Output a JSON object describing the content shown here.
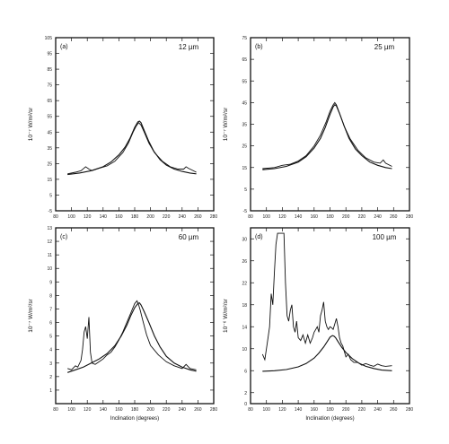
{
  "chart_data": [
    {
      "type": "line",
      "panel": "(a)",
      "wavelength": "12 µm",
      "ylabel": "10⁻⁷ W/m²/sr",
      "xlabel": "",
      "xlim": [
        80,
        280
      ],
      "ylim": [
        -5,
        105
      ],
      "xticks": [
        "80",
        "100",
        "120",
        "140",
        "160",
        "180",
        "200",
        "220",
        "240",
        "260",
        "280"
      ],
      "yticks": [
        "-5",
        "5",
        "15",
        "25",
        "35",
        "45",
        "55",
        "65",
        "75",
        "85",
        "95",
        "105"
      ],
      "series": [
        {
          "role": "observed",
          "x": [
            95,
            105,
            112,
            118,
            122,
            126,
            135,
            145,
            155,
            165,
            172,
            178,
            182,
            185,
            188,
            192,
            198,
            205,
            215,
            225,
            235,
            242,
            245,
            248,
            252,
            258
          ],
          "y": [
            18.5,
            19.5,
            20.5,
            23,
            21.5,
            20.5,
            22,
            23.5,
            26.5,
            32,
            38,
            45,
            49,
            51,
            49.5,
            45,
            38,
            32,
            26.5,
            23,
            21.5,
            21.5,
            23,
            22,
            21,
            19.5
          ]
        },
        {
          "role": "model",
          "x": [
            95,
            110,
            125,
            140,
            150,
            160,
            168,
            174,
            180,
            184,
            186,
            188,
            192,
            198,
            204,
            212,
            220,
            230,
            240,
            250,
            258
          ],
          "y": [
            18,
            19,
            20.5,
            23,
            26,
            30.5,
            35.5,
            41,
            48,
            51.5,
            52,
            51,
            46,
            39,
            33,
            27.5,
            24,
            21.5,
            20,
            19,
            18.5
          ]
        }
      ]
    },
    {
      "type": "line",
      "panel": "(b)",
      "wavelength": "25 µm",
      "ylabel": "10⁻⁷ W/m²/sr",
      "xlabel": "",
      "xlim": [
        80,
        280
      ],
      "ylim": [
        -5,
        75
      ],
      "xticks": [
        "80",
        "100",
        "120",
        "140",
        "160",
        "180",
        "200",
        "220",
        "240",
        "260",
        "280"
      ],
      "yticks": [
        "-5",
        "5",
        "15",
        "25",
        "35",
        "45",
        "55",
        "65",
        "75"
      ],
      "series": [
        {
          "role": "observed",
          "x": [
            95,
            110,
            120,
            130,
            140,
            150,
            160,
            168,
            175,
            180,
            184,
            186,
            188,
            192,
            198,
            205,
            215,
            225,
            235,
            243,
            247,
            250,
            258
          ],
          "y": [
            14.5,
            15,
            16,
            16.5,
            18,
            20.5,
            25,
            30,
            36,
            41,
            44,
            45,
            44,
            40,
            34,
            28.5,
            23,
            19.5,
            17.5,
            17,
            18.5,
            17,
            15.5
          ]
        },
        {
          "role": "model",
          "x": [
            95,
            110,
            125,
            140,
            150,
            160,
            168,
            174,
            180,
            184,
            186,
            188,
            192,
            198,
            204,
            212,
            220,
            230,
            240,
            250,
            258
          ],
          "y": [
            14,
            14.5,
            15.5,
            17.5,
            20,
            24,
            28.5,
            33.5,
            39.5,
            43,
            44,
            43.5,
            40,
            34,
            28.5,
            23.5,
            20.5,
            17.5,
            16,
            15,
            14.5
          ]
        }
      ]
    },
    {
      "type": "line",
      "panel": "(c)",
      "wavelength": "60 µm",
      "ylabel": "10⁻⁷ W/m²/sr",
      "xlabel": "Inclination (degrees)",
      "xlim": [
        80,
        280
      ],
      "ylim": [
        0,
        13
      ],
      "xticks": [
        "80",
        "100",
        "120",
        "140",
        "160",
        "180",
        "200",
        "220",
        "240",
        "260",
        "280"
      ],
      "yticks": [
        "1",
        "2",
        "3",
        "4",
        "5",
        "6",
        "7",
        "8",
        "9",
        "10",
        "11",
        "12",
        "13"
      ],
      "series": [
        {
          "role": "observed",
          "x": [
            95,
            100,
            105,
            108,
            112,
            114,
            116,
            118,
            120,
            122,
            124,
            126,
            130,
            135,
            140,
            145,
            150,
            155,
            160,
            165,
            170,
            175,
            180,
            183,
            185,
            187,
            190,
            195,
            200,
            210,
            220,
            230,
            240,
            245,
            250,
            258
          ],
          "y": [
            2.6,
            2.5,
            2.8,
            2.7,
            3.2,
            4,
            5.3,
            5.7,
            4.8,
            6.4,
            3.8,
            3,
            2.9,
            3.1,
            3.3,
            3.6,
            3.8,
            4.2,
            4.7,
            5.3,
            6,
            6.7,
            7.4,
            7.6,
            7.3,
            6.9,
            6.2,
            5.1,
            4.3,
            3.6,
            3.1,
            2.8,
            2.6,
            2.9,
            2.6,
            2.5
          ]
        },
        {
          "role": "model",
          "x": [
            95,
            105,
            115,
            125,
            135,
            145,
            155,
            163,
            170,
            175,
            180,
            184,
            186,
            188,
            192,
            198,
            205,
            212,
            220,
            230,
            240,
            250,
            258
          ],
          "y": [
            2.3,
            2.5,
            2.7,
            3,
            3.3,
            3.7,
            4.3,
            5,
            5.8,
            6.5,
            7.1,
            7.4,
            7.45,
            7.3,
            6.8,
            6,
            5,
            4.2,
            3.5,
            3,
            2.7,
            2.5,
            2.4
          ]
        }
      ]
    },
    {
      "type": "line",
      "panel": "(d)",
      "wavelength": "100 µm",
      "ylabel": "10⁻⁶ W/m²/sr",
      "xlabel": "Inclination (degrees)",
      "xlim": [
        80,
        280
      ],
      "ylim": [
        0,
        32
      ],
      "xticks": [
        "80",
        "100",
        "120",
        "140",
        "160",
        "180",
        "200",
        "220",
        "240",
        "260",
        "280"
      ],
      "yticks": [
        "0",
        "2",
        "6",
        "10",
        "14",
        "18",
        "22",
        "26",
        "30"
      ],
      "series": [
        {
          "role": "observed",
          "x": [
            95,
            98,
            100,
            102,
            104,
            106,
            108,
            110,
            112,
            114,
            116,
            118,
            120,
            122,
            124,
            126,
            128,
            130,
            132,
            134,
            136,
            138,
            140,
            143,
            146,
            149,
            152,
            155,
            158,
            160,
            162,
            164,
            166,
            168,
            170,
            172,
            174,
            176,
            178,
            180,
            182,
            184,
            186,
            188,
            190,
            192,
            194,
            196,
            198,
            200,
            203,
            206,
            210,
            215,
            220,
            225,
            230,
            235,
            240,
            245,
            250,
            258
          ],
          "y": [
            9,
            8,
            10,
            12,
            14,
            20,
            18,
            24,
            29,
            31,
            31,
            31,
            31,
            31,
            22,
            16,
            15,
            17,
            18,
            14,
            13,
            15,
            12,
            11.5,
            12.5,
            11,
            12.5,
            11,
            12,
            13,
            13.5,
            14,
            13,
            16,
            17,
            18.5,
            15,
            14,
            13.5,
            14,
            13.8,
            13.5,
            14.5,
            15.5,
            14,
            12,
            11,
            10.5,
            9.5,
            8.5,
            9,
            8,
            7.5,
            7.5,
            7,
            7.3,
            7,
            6.8,
            7.2,
            6.9,
            6.8,
            6.9
          ]
        },
        {
          "role": "model",
          "x": [
            95,
            110,
            125,
            140,
            150,
            160,
            166,
            172,
            176,
            180,
            183,
            185,
            187,
            190,
            195,
            200,
            208,
            216,
            225,
            235,
            245,
            258
          ],
          "y": [
            5.9,
            6,
            6.2,
            6.7,
            7.3,
            8.3,
            9.2,
            10.3,
            11.2,
            12.1,
            12.4,
            12.3,
            12,
            11.3,
            10.2,
            9.3,
            8.2,
            7.4,
            6.8,
            6.4,
            6.1,
            6
          ]
        }
      ]
    }
  ]
}
